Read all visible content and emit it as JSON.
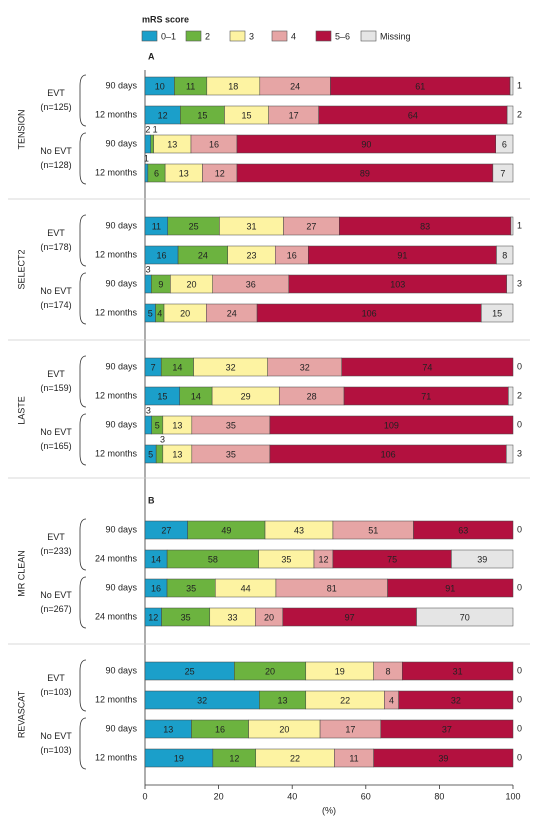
{
  "chart_data": {
    "type": "stacked-bar",
    "legend_title": "mRS score",
    "series": [
      {
        "name": "0–1",
        "color": "#1b9fca",
        "text_color": "#ffffff"
      },
      {
        "name": "2",
        "color": "#6cb33f",
        "text_color": "#ffffff"
      },
      {
        "name": "3",
        "color": "#fdf3a2",
        "text_color": "#000000"
      },
      {
        "name": "4",
        "color": "#e6a5a5",
        "text_color": "#000000"
      },
      {
        "name": "5–6",
        "color": "#b3113f",
        "text_color": "#ffffff"
      },
      {
        "name": "Missing",
        "color": "#e5e5e5",
        "text_color": "#000000"
      }
    ],
    "sections": [
      {
        "label": "A",
        "first_trial": 0
      },
      {
        "label": "B",
        "first_trial": 3
      }
    ],
    "trials": [
      {
        "name": "TENSION",
        "groups": [
          {
            "label": "EVT",
            "n": "(n=125)",
            "rows": [
              {
                "time": "90 days",
                "values": [
                  10,
                  11,
                  18,
                  24,
                  61,
                  1
                ]
              },
              {
                "time": "12 months",
                "values": [
                  12,
                  15,
                  15,
                  17,
                  64,
                  2
                ]
              }
            ]
          },
          {
            "label": "No EVT",
            "n": "(n=128)",
            "rows": [
              {
                "time": "90 days",
                "values": [
                  2,
                  1,
                  13,
                  16,
                  90,
                  6
                ]
              },
              {
                "time": "12 months",
                "values": [
                  1,
                  6,
                  13,
                  12,
                  89,
                  7
                ]
              }
            ]
          }
        ]
      },
      {
        "name": "SELECT2",
        "groups": [
          {
            "label": "EVT",
            "n": "(n=178)",
            "rows": [
              {
                "time": "90 days",
                "values": [
                  11,
                  25,
                  31,
                  27,
                  83,
                  1
                ]
              },
              {
                "time": "12 months",
                "values": [
                  16,
                  24,
                  23,
                  16,
                  91,
                  8
                ]
              }
            ]
          },
          {
            "label": "No EVT",
            "n": "(n=174)",
            "rows": [
              {
                "time": "90 days",
                "values": [
                  3,
                  9,
                  20,
                  36,
                  103,
                  3
                ]
              },
              {
                "time": "12 months",
                "values": [
                  5,
                  4,
                  20,
                  24,
                  106,
                  15
                ]
              }
            ]
          }
        ]
      },
      {
        "name": "LASTE",
        "groups": [
          {
            "label": "EVT",
            "n": "(n=159)",
            "rows": [
              {
                "time": "90 days",
                "values": [
                  7,
                  14,
                  32,
                  32,
                  74,
                  0
                ]
              },
              {
                "time": "12 months",
                "values": [
                  15,
                  14,
                  29,
                  28,
                  71,
                  2
                ]
              }
            ]
          },
          {
            "label": "No EVT",
            "n": "(n=165)",
            "rows": [
              {
                "time": "90 days",
                "values": [
                  3,
                  5,
                  13,
                  35,
                  109,
                  0
                ]
              },
              {
                "time": "12 months",
                "values": [
                  5,
                  3,
                  13,
                  35,
                  106,
                  3
                ]
              }
            ]
          }
        ]
      },
      {
        "name": "MR CLEAN",
        "groups": [
          {
            "label": "EVT",
            "n": "(n=233)",
            "rows": [
              {
                "time": "90 days",
                "values": [
                  27,
                  49,
                  43,
                  51,
                  63,
                  0
                ]
              },
              {
                "time": "24 months",
                "values": [
                  14,
                  58,
                  35,
                  12,
                  75,
                  39
                ]
              }
            ]
          },
          {
            "label": "No EVT",
            "n": "(n=267)",
            "rows": [
              {
                "time": "90 days",
                "values": [
                  16,
                  35,
                  44,
                  81,
                  91,
                  0
                ]
              },
              {
                "time": "24 months",
                "values": [
                  12,
                  35,
                  33,
                  20,
                  97,
                  70
                ]
              }
            ]
          }
        ]
      },
      {
        "name": "REVASCAT",
        "groups": [
          {
            "label": "EVT",
            "n": "(n=103)",
            "rows": [
              {
                "time": "90 days",
                "values": [
                  25,
                  20,
                  19,
                  8,
                  31,
                  0
                ]
              },
              {
                "time": "12 months",
                "values": [
                  32,
                  13,
                  22,
                  4,
                  32,
                  0
                ]
              }
            ]
          },
          {
            "label": "No EVT",
            "n": "(n=103)",
            "rows": [
              {
                "time": "90 days",
                "values": [
                  13,
                  16,
                  20,
                  17,
                  37,
                  0
                ]
              },
              {
                "time": "12 months",
                "values": [
                  19,
                  12,
                  22,
                  11,
                  39,
                  0
                ]
              }
            ]
          }
        ]
      }
    ],
    "xlabel": "(%)",
    "xlim": [
      0,
      100
    ],
    "xticks": [
      0,
      20,
      40,
      60,
      80,
      100
    ]
  }
}
